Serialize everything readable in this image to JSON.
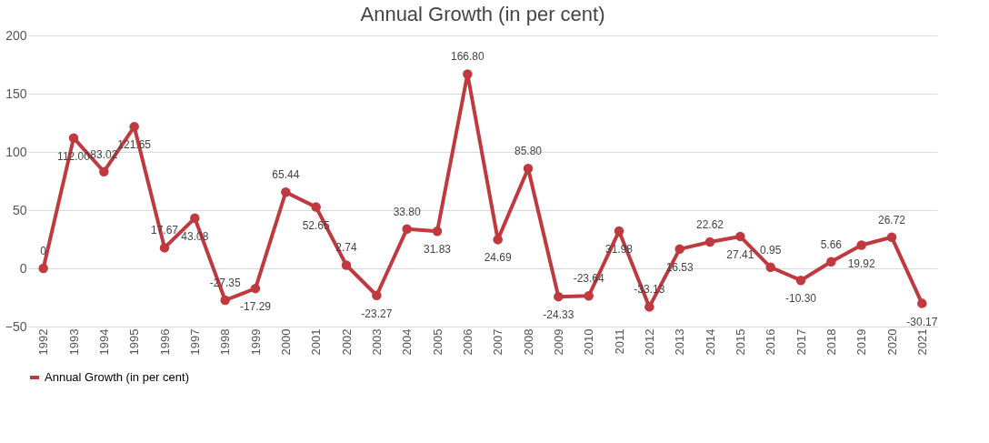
{
  "chart_data": {
    "type": "line",
    "title": "Annual Growth (in per cent)",
    "categories": [
      "1992",
      "1993",
      "1994",
      "1995",
      "1996",
      "1997",
      "1998",
      "1999",
      "2000",
      "2001",
      "2002",
      "2003",
      "2004",
      "2005",
      "2006",
      "2007",
      "2008",
      "2009",
      "2010",
      "2011",
      "2012",
      "2013",
      "2014",
      "2015",
      "2016",
      "2017",
      "2018",
      "2019",
      "2020",
      "2021"
    ],
    "series": [
      {
        "name": "Annual Growth (in per cent)",
        "color": "#c0393f",
        "values": [
          0,
          112.0,
          83.02,
          121.65,
          17.67,
          43.08,
          -27.35,
          -17.29,
          65.44,
          52.65,
          2.74,
          -23.27,
          33.8,
          31.83,
          166.8,
          24.69,
          85.8,
          -24.33,
          -23.64,
          31.98,
          -33.13,
          16.53,
          22.62,
          27.41,
          0.95,
          -10.3,
          5.66,
          19.92,
          26.72,
          -30.17
        ],
        "value_labels": [
          "0",
          "112.00",
          "83.02",
          "121.65",
          "17.67",
          "43.08",
          "-27.35",
          "-17.29",
          "65.44",
          "52.65",
          "2.74",
          "-23.27",
          "33.80",
          "31.83",
          "166.80",
          "24.69",
          "85.80",
          "-24.33",
          "-23.64",
          "31.98",
          "-33.13",
          "16.53",
          "22.62",
          "27.41",
          "0.95",
          "-10.30",
          "5.66",
          "19.92",
          "26.72",
          "-30.17"
        ]
      }
    ],
    "ylim": [
      -50,
      200
    ],
    "yticks": [
      -50,
      0,
      50,
      100,
      150,
      200
    ],
    "grid": "y",
    "legend": "bottom",
    "marker": "circle",
    "line_style": "solid"
  }
}
